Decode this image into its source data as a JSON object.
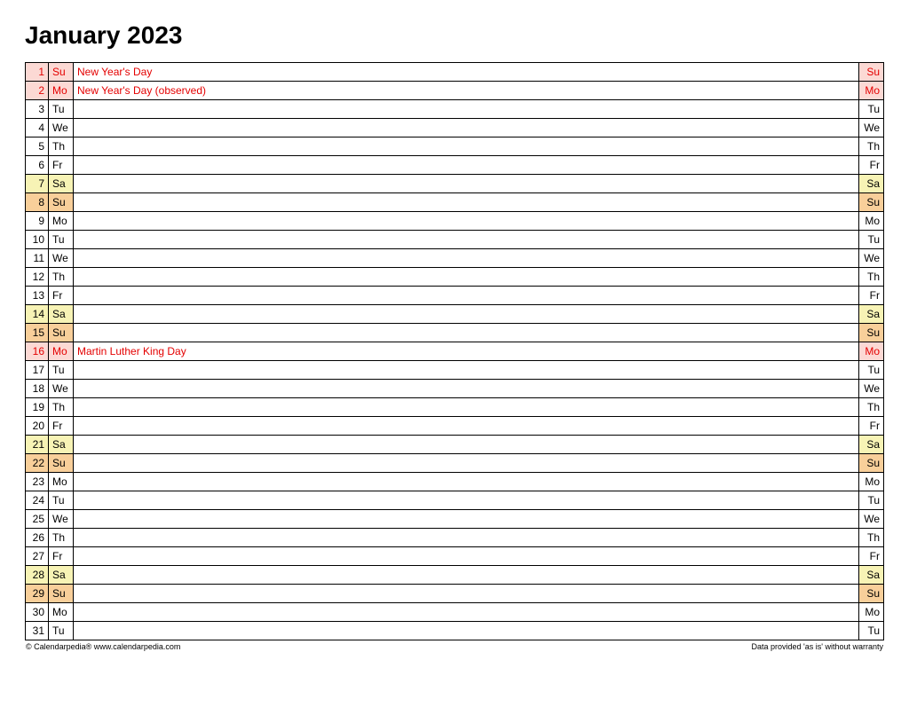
{
  "title": "January 2023",
  "footer_left": "© Calendarpedia®   www.calendarpedia.com",
  "footer_right": "Data provided 'as is' without warranty",
  "colors": {
    "holiday_bg": "#fcd9d4",
    "holiday_text": "#e40000",
    "saturday_bg": "#f7f3b5",
    "sunday_bg": "#f8cf9a",
    "weekend_text": "#000000",
    "normal_text": "#000000",
    "normal_bg": "#ffffff",
    "event_text_holiday": "#e40000"
  },
  "days": [
    {
      "num": "1",
      "dow": "Su",
      "event": "New Year's Day",
      "type": "holiday",
      "holiday_dow": true
    },
    {
      "num": "2",
      "dow": "Mo",
      "event": "New Year's Day (observed)",
      "type": "holiday",
      "holiday_dow": true
    },
    {
      "num": "3",
      "dow": "Tu",
      "event": "",
      "type": "weekday",
      "holiday_dow": false
    },
    {
      "num": "4",
      "dow": "We",
      "event": "",
      "type": "weekday",
      "holiday_dow": false
    },
    {
      "num": "5",
      "dow": "Th",
      "event": "",
      "type": "weekday",
      "holiday_dow": false
    },
    {
      "num": "6",
      "dow": "Fr",
      "event": "",
      "type": "weekday",
      "holiday_dow": false
    },
    {
      "num": "7",
      "dow": "Sa",
      "event": "",
      "type": "saturday",
      "holiday_dow": false
    },
    {
      "num": "8",
      "dow": "Su",
      "event": "",
      "type": "sunday",
      "holiday_dow": false
    },
    {
      "num": "9",
      "dow": "Mo",
      "event": "",
      "type": "weekday",
      "holiday_dow": false
    },
    {
      "num": "10",
      "dow": "Tu",
      "event": "",
      "type": "weekday",
      "holiday_dow": false
    },
    {
      "num": "11",
      "dow": "We",
      "event": "",
      "type": "weekday",
      "holiday_dow": false
    },
    {
      "num": "12",
      "dow": "Th",
      "event": "",
      "type": "weekday",
      "holiday_dow": false
    },
    {
      "num": "13",
      "dow": "Fr",
      "event": "",
      "type": "weekday",
      "holiday_dow": false
    },
    {
      "num": "14",
      "dow": "Sa",
      "event": "",
      "type": "saturday",
      "holiday_dow": false
    },
    {
      "num": "15",
      "dow": "Su",
      "event": "",
      "type": "sunday",
      "holiday_dow": false
    },
    {
      "num": "16",
      "dow": "Mo",
      "event": "Martin Luther King Day",
      "type": "holiday",
      "holiday_dow": true
    },
    {
      "num": "17",
      "dow": "Tu",
      "event": "",
      "type": "weekday",
      "holiday_dow": false
    },
    {
      "num": "18",
      "dow": "We",
      "event": "",
      "type": "weekday",
      "holiday_dow": false
    },
    {
      "num": "19",
      "dow": "Th",
      "event": "",
      "type": "weekday",
      "holiday_dow": false
    },
    {
      "num": "20",
      "dow": "Fr",
      "event": "",
      "type": "weekday",
      "holiday_dow": false
    },
    {
      "num": "21",
      "dow": "Sa",
      "event": "",
      "type": "saturday",
      "holiday_dow": false
    },
    {
      "num": "22",
      "dow": "Su",
      "event": "",
      "type": "sunday",
      "holiday_dow": false
    },
    {
      "num": "23",
      "dow": "Mo",
      "event": "",
      "type": "weekday",
      "holiday_dow": false
    },
    {
      "num": "24",
      "dow": "Tu",
      "event": "",
      "type": "weekday",
      "holiday_dow": false
    },
    {
      "num": "25",
      "dow": "We",
      "event": "",
      "type": "weekday",
      "holiday_dow": false
    },
    {
      "num": "26",
      "dow": "Th",
      "event": "",
      "type": "weekday",
      "holiday_dow": false
    },
    {
      "num": "27",
      "dow": "Fr",
      "event": "",
      "type": "weekday",
      "holiday_dow": false
    },
    {
      "num": "28",
      "dow": "Sa",
      "event": "",
      "type": "saturday",
      "holiday_dow": false
    },
    {
      "num": "29",
      "dow": "Su",
      "event": "",
      "type": "sunday",
      "holiday_dow": false
    },
    {
      "num": "30",
      "dow": "Mo",
      "event": "",
      "type": "weekday",
      "holiday_dow": false
    },
    {
      "num": "31",
      "dow": "Tu",
      "event": "",
      "type": "weekday",
      "holiday_dow": false
    }
  ]
}
